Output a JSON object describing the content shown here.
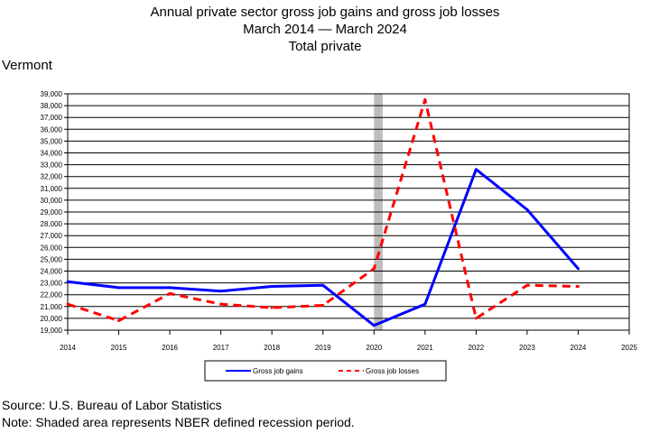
{
  "header": {
    "title": "Annual private sector gross job gains and gross job losses",
    "subtitle": "March 2014 — March 2024",
    "series_label": "Total private"
  },
  "region": "Vermont",
  "footer": {
    "source": "Source: U.S. Bureau of Labor Statistics",
    "note": "Note: Shaded area represents NBER defined recession period."
  },
  "chart_data": {
    "type": "line",
    "x": [
      2014,
      2015,
      2016,
      2017,
      2018,
      2019,
      2020,
      2021,
      2022,
      2023,
      2024
    ],
    "xlim": [
      2014,
      2025
    ],
    "x_ticks": [
      2014,
      2015,
      2016,
      2017,
      2018,
      2019,
      2020,
      2021,
      2022,
      2023,
      2024,
      2025
    ],
    "ylim": [
      19000,
      39000
    ],
    "y_tick_step": 1000,
    "grid": "horizontal",
    "legend_position": "bottom",
    "recession_shading": [
      2020.0,
      2020.17
    ],
    "series": [
      {
        "name": "Gross job gains",
        "color": "#0000ff",
        "style": "solid",
        "values": [
          23100,
          22600,
          22600,
          22300,
          22700,
          22800,
          19400,
          21200,
          32600,
          29200,
          24200
        ]
      },
      {
        "name": "Gross job losses",
        "color": "#ff0000",
        "style": "dashed",
        "values": [
          21200,
          19800,
          22100,
          21200,
          20900,
          21100,
          24200,
          38500,
          20000,
          22800,
          22700
        ]
      }
    ]
  }
}
